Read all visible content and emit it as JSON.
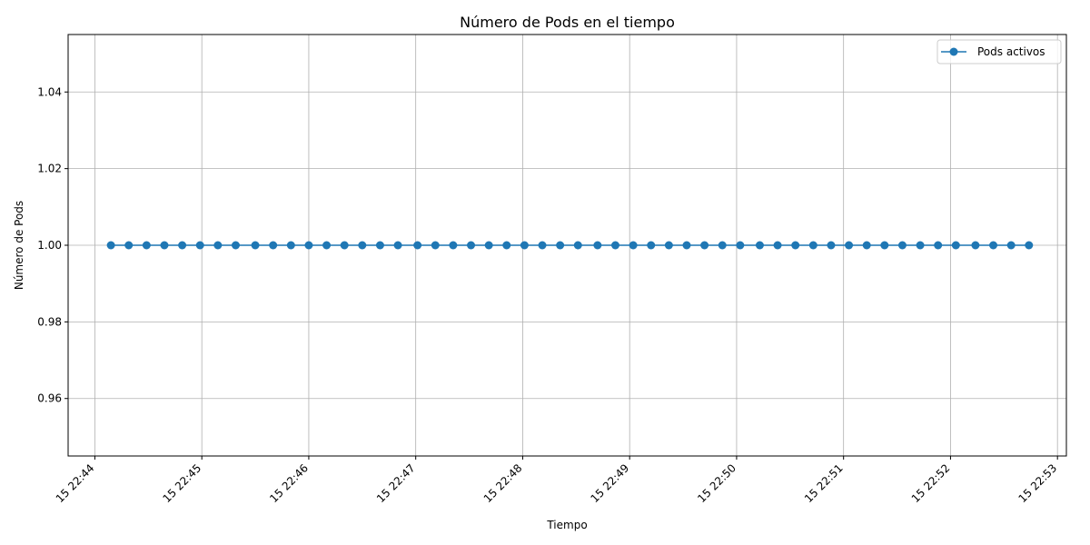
{
  "chart_data": {
    "type": "line",
    "title": "Número de Pods en el tiempo",
    "xlabel": "Tiempo",
    "ylabel": "Número de Pods",
    "xlim": [
      "22:43:45",
      "22:53:05"
    ],
    "ylim": [
      0.945,
      1.055
    ],
    "x_ticks": [
      "15 22:44",
      "15 22:45",
      "15 22:46",
      "15 22:47",
      "15 22:48",
      "15 22:49",
      "15 22:50",
      "15 22:51",
      "15 22:52",
      "15 22:53"
    ],
    "y_ticks": [
      "0.96",
      "0.98",
      "1.00",
      "1.02",
      "1.04"
    ],
    "grid": true,
    "legend_position": "top-right",
    "color": "#1f77b4",
    "series": [
      {
        "name": "Pods activos",
        "x": [
          "22:44:09",
          "22:44:19",
          "22:44:29",
          "22:44:39",
          "22:44:49",
          "22:44:59",
          "22:45:09",
          "22:45:19",
          "22:45:30",
          "22:45:40",
          "22:45:50",
          "22:46:00",
          "22:46:10",
          "22:46:20",
          "22:46:30",
          "22:46:40",
          "22:46:50",
          "22:47:01",
          "22:47:11",
          "22:47:21",
          "22:47:31",
          "22:47:41",
          "22:47:51",
          "22:48:01",
          "22:48:11",
          "22:48:21",
          "22:48:31",
          "22:48:42",
          "22:48:52",
          "22:49:02",
          "22:49:12",
          "22:49:22",
          "22:49:32",
          "22:49:42",
          "22:49:52",
          "22:50:02",
          "22:50:13",
          "22:50:23",
          "22:50:33",
          "22:50:43",
          "22:50:53",
          "22:51:03",
          "22:51:13",
          "22:51:23",
          "22:51:33",
          "22:51:43",
          "22:51:53",
          "22:52:03",
          "22:52:14",
          "22:52:24",
          "22:52:34",
          "22:52:44"
        ],
        "values": [
          1,
          1,
          1,
          1,
          1,
          1,
          1,
          1,
          1,
          1,
          1,
          1,
          1,
          1,
          1,
          1,
          1,
          1,
          1,
          1,
          1,
          1,
          1,
          1,
          1,
          1,
          1,
          1,
          1,
          1,
          1,
          1,
          1,
          1,
          1,
          1,
          1,
          1,
          1,
          1,
          1,
          1,
          1,
          1,
          1,
          1,
          1,
          1,
          1,
          1,
          1,
          1
        ]
      }
    ]
  }
}
